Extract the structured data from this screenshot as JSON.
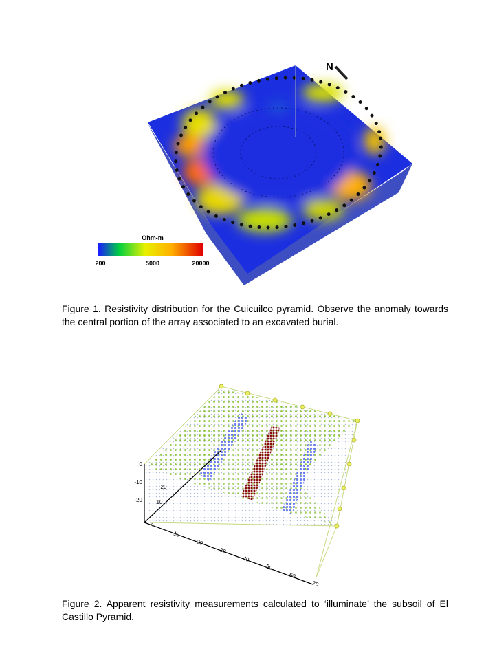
{
  "figure1": {
    "north_label": "N",
    "legend": {
      "title": "Ohm-m",
      "ticks": [
        "200",
        "5000",
        "20000"
      ]
    },
    "caption": "Figure 1. Resistivity distribution for the Cuicuilco pyramid. Observe the anomaly towards the central portion of the array associated to an excavated burial."
  },
  "figure2": {
    "x_ticks": [
      "0",
      "10",
      "20",
      "30",
      "40",
      "50",
      "60",
      "70"
    ],
    "z_ticks": [
      "0",
      "-10",
      "-20"
    ],
    "y_ticks": [
      "20",
      "10"
    ],
    "caption": "Figure 2. Apparent resistivity measurements calculated to ‘illuminate’ the subsoil of El Castillo Pyramid."
  }
}
